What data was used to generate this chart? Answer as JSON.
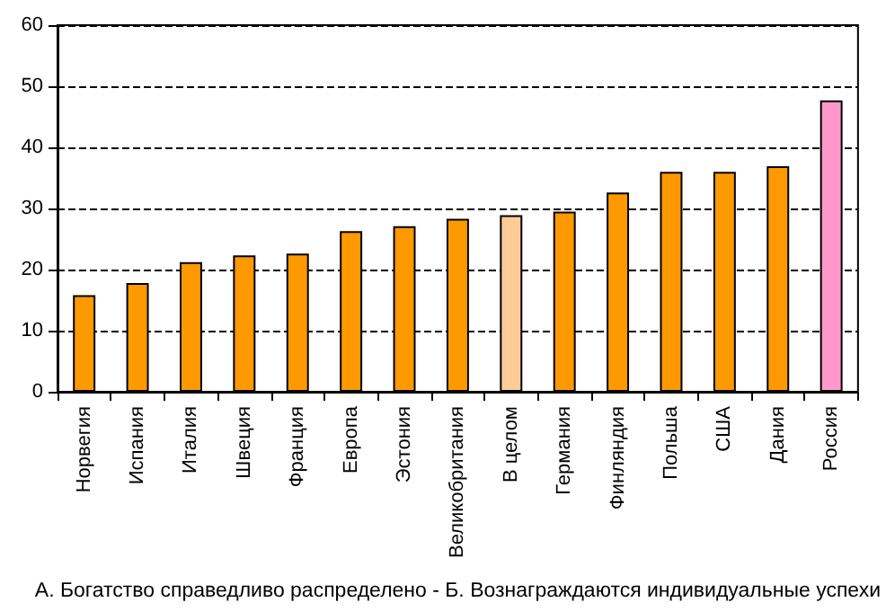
{
  "chart_data": {
    "type": "bar",
    "categories": [
      "Норвегия",
      "Испания",
      "Италия",
      "Швеция",
      "Франция",
      "Европа",
      "Эстония",
      "Великобритания",
      "В целом",
      "Германия",
      "Финляндия",
      "Польша",
      "США",
      "Дания",
      "Россия"
    ],
    "values": [
      15.8,
      17.8,
      21.2,
      22.3,
      22.6,
      26.3,
      27.1,
      28.3,
      28.9,
      29.5,
      32.6,
      36.0,
      36.0,
      36.9,
      47.7
    ],
    "colors": [
      "#ff9900",
      "#ff9900",
      "#ff9900",
      "#ff9900",
      "#ff9900",
      "#ff9900",
      "#ff9900",
      "#ff9900",
      "#ffcc99",
      "#ff9900",
      "#ff9900",
      "#ff9900",
      "#ff9900",
      "#ff9900",
      "#ff99cc"
    ],
    "xlabel": "А. Богатство справедливо распределено - Б. Вознаграждаются индивидуальные успехи",
    "ylim": [
      0,
      60
    ],
    "yticks": [
      0,
      10,
      20,
      30,
      40,
      50,
      60
    ],
    "grid": "y"
  }
}
